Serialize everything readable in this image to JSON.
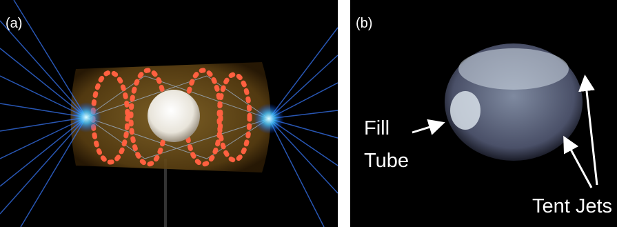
{
  "panels": [
    {
      "label": "(a)"
    },
    {
      "label": "(b)",
      "annotations": [
        {
          "lines": [
            "Fill",
            "Tube"
          ]
        },
        {
          "lines": [
            "Tent Jets"
          ]
        }
      ]
    }
  ]
}
